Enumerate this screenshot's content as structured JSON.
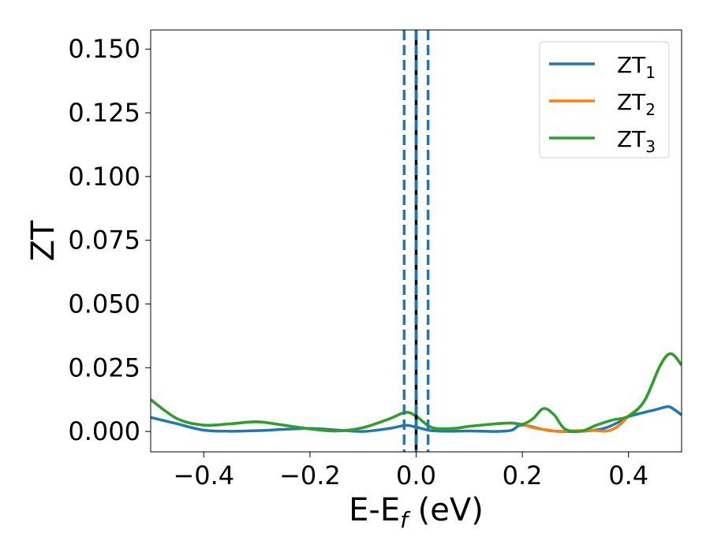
{
  "chart_data": {
    "type": "line",
    "xlabel_main": "E-E",
    "xlabel_sub": "f",
    "xlabel_tail": " (eV)",
    "ylabel": "ZT",
    "xlim": [
      -0.5,
      0.5
    ],
    "ylim": [
      -0.008,
      0.1575
    ],
    "x_ticks": [
      -0.4,
      -0.2,
      0.0,
      0.2,
      0.4
    ],
    "x_tick_labels": [
      "−0.4",
      "−0.2",
      "0.0",
      "0.2",
      "0.4"
    ],
    "y_ticks": [
      0.0,
      0.025,
      0.05,
      0.075,
      0.1,
      0.125,
      0.15
    ],
    "y_tick_labels": [
      "0.000",
      "0.025",
      "0.050",
      "0.075",
      "0.100",
      "0.125",
      "0.150"
    ],
    "grid": false,
    "legend_position": "top-right",
    "vlines": [
      {
        "x": 0.0,
        "color": "#000000",
        "style": "solid"
      },
      {
        "x": -0.0225,
        "color": "#1f77b4",
        "style": "dashed"
      },
      {
        "x": 0.0225,
        "color": "#1f77b4",
        "style": "dashed"
      },
      {
        "x": 0.0,
        "color": "#1f77b4",
        "style": "dashed"
      }
    ],
    "series": [
      {
        "name": "ZT1",
        "label_main": "ZT",
        "label_sub": "1",
        "color": "#1f77b4",
        "x": [
          -0.5,
          -0.45,
          -0.4,
          -0.35,
          -0.3,
          -0.25,
          -0.2,
          -0.15,
          -0.1,
          -0.05,
          -0.02,
          0.0,
          0.03,
          0.07,
          0.1,
          0.15,
          0.18,
          0.2,
          0.25,
          0.3,
          0.35,
          0.38,
          0.4,
          0.43,
          0.45,
          0.47,
          0.48,
          0.5
        ],
        "y": [
          0.0055,
          0.003,
          0.0005,
          0.0001,
          0.0003,
          0.0008,
          0.0012,
          0.0006,
          0.0,
          0.0012,
          0.0024,
          0.0017,
          0.0003,
          0.0001,
          0.0002,
          0.0,
          0.0005,
          0.0025,
          0.0004,
          0.0,
          0.001,
          0.0035,
          0.0058,
          0.0075,
          0.0085,
          0.0096,
          0.0094,
          0.0065
        ]
      },
      {
        "name": "ZT2",
        "label_main": "ZT",
        "label_sub": "2",
        "color": "#ff7f0e",
        "x": [
          -0.5,
          -0.45,
          -0.4,
          -0.35,
          -0.3,
          -0.25,
          -0.2,
          -0.15,
          -0.1,
          -0.05,
          -0.02,
          0.0,
          0.03,
          0.07,
          0.1,
          0.15,
          0.18,
          0.2,
          0.22,
          0.25,
          0.27,
          0.3,
          0.33,
          0.36,
          0.38,
          0.4,
          0.43,
          0.46,
          0.48,
          0.5
        ],
        "y": [
          0.0125,
          0.005,
          0.0025,
          0.003,
          0.0038,
          0.0025,
          0.001,
          0.0002,
          0.0015,
          0.005,
          0.0075,
          0.006,
          0.0015,
          0.0012,
          0.002,
          0.003,
          0.0033,
          0.0028,
          0.0015,
          0.0005,
          0.0,
          0.0003,
          0.0004,
          0.0002,
          0.002,
          0.006,
          0.012,
          0.026,
          0.0305,
          0.026
        ]
      },
      {
        "name": "ZT3",
        "label_main": "ZT",
        "label_sub": "3",
        "color": "#2ca02c",
        "x": [
          -0.5,
          -0.45,
          -0.4,
          -0.35,
          -0.3,
          -0.25,
          -0.2,
          -0.15,
          -0.1,
          -0.05,
          -0.02,
          0.0,
          0.03,
          0.07,
          0.1,
          0.15,
          0.18,
          0.2,
          0.22,
          0.24,
          0.26,
          0.28,
          0.31,
          0.34,
          0.37,
          0.4,
          0.43,
          0.46,
          0.48,
          0.5
        ],
        "y": [
          0.0125,
          0.005,
          0.0025,
          0.003,
          0.0038,
          0.0025,
          0.001,
          0.0002,
          0.0015,
          0.005,
          0.0075,
          0.006,
          0.0015,
          0.0012,
          0.002,
          0.003,
          0.0033,
          0.0028,
          0.005,
          0.009,
          0.0065,
          0.001,
          0.0001,
          0.0025,
          0.0045,
          0.006,
          0.012,
          0.026,
          0.0305,
          0.026
        ]
      }
    ]
  }
}
